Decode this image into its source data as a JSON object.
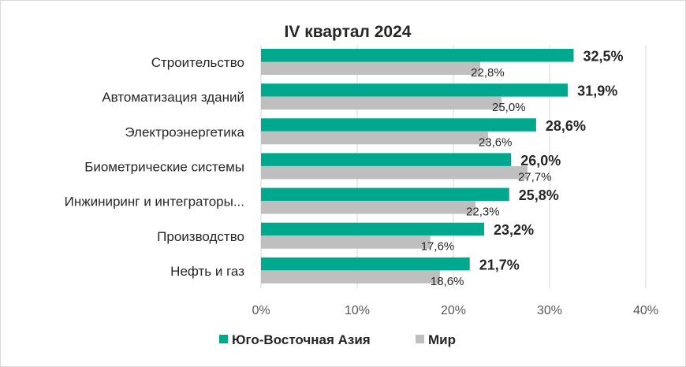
{
  "chart_data": {
    "type": "bar",
    "orientation": "horizontal",
    "title": "IV квартал 2024",
    "categories": [
      "Строительство",
      "Автоматизация зданий",
      "Электроэнергетика",
      "Биометрические системы",
      "Инжиниринг и интеграторы...",
      "Производство",
      "Нефть и газ"
    ],
    "series": [
      {
        "name": "Юго-Восточная Азия",
        "color": "#00a88e",
        "values": [
          32.5,
          31.9,
          28.6,
          26.0,
          25.8,
          23.2,
          21.7
        ],
        "labels": [
          "32,5%",
          "31,9%",
          "28,6%",
          "26,0%",
          "25,8%",
          "23,2%",
          "21,7%"
        ]
      },
      {
        "name": "Мир",
        "color": "#bfbfbf",
        "values": [
          22.8,
          25.0,
          23.6,
          27.7,
          22.3,
          17.6,
          18.6
        ],
        "labels": [
          "22,8%",
          "25,0%",
          "23,6%",
          "27,7%",
          "22,3%",
          "17,6%",
          "18,6%"
        ]
      }
    ],
    "xlim": [
      0,
      40
    ],
    "xticks": [
      0,
      10,
      20,
      30,
      40
    ],
    "xtick_labels": [
      "0%",
      "10%",
      "20%",
      "30%",
      "40%"
    ],
    "grid": true,
    "legend_position": "bottom"
  }
}
